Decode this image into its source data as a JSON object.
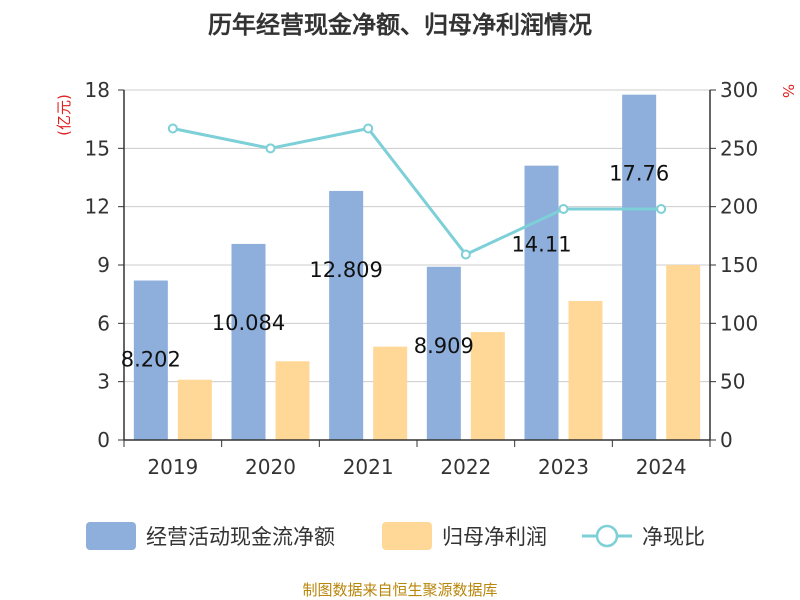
{
  "title": "历年经营现金净额、归母净利润情况",
  "source": "制图数据来自恒生聚源数据库",
  "colors": {
    "cash": "#8eaedb",
    "profit": "#ffd898",
    "ratio": "#7dcfd8",
    "unit": "#e01f1f",
    "source": "#b8860b"
  },
  "chart_data": {
    "type": "bar",
    "categories": [
      "2019",
      "2020",
      "2021",
      "2022",
      "2023",
      "2024"
    ],
    "series": [
      {
        "name": "经营活动现金流净额",
        "type": "bar",
        "axis": "left",
        "values": [
          8.202,
          10.084,
          12.809,
          8.909,
          14.11,
          17.76
        ]
      },
      {
        "name": "归母净利润",
        "type": "bar",
        "axis": "left",
        "values": [
          3.1,
          4.05,
          4.8,
          5.55,
          7.15,
          9.0
        ]
      },
      {
        "name": "净现比",
        "type": "line",
        "axis": "right",
        "values": [
          267,
          250,
          267,
          159,
          198,
          198
        ]
      }
    ],
    "data_labels": [
      "8.202",
      "10.084",
      "12.809",
      "8.909",
      "14.11",
      "17.76"
    ],
    "y_left": {
      "label": "(亿元)",
      "min": 0,
      "max": 18,
      "ticks": [
        "0",
        "3",
        "6",
        "9",
        "12",
        "15",
        "18"
      ]
    },
    "y_right": {
      "label": "%",
      "min": 0,
      "max": 300,
      "ticks": [
        "0",
        "50",
        "100",
        "150",
        "200",
        "250",
        "300"
      ]
    },
    "grid": true,
    "legend_position": "bottom"
  }
}
